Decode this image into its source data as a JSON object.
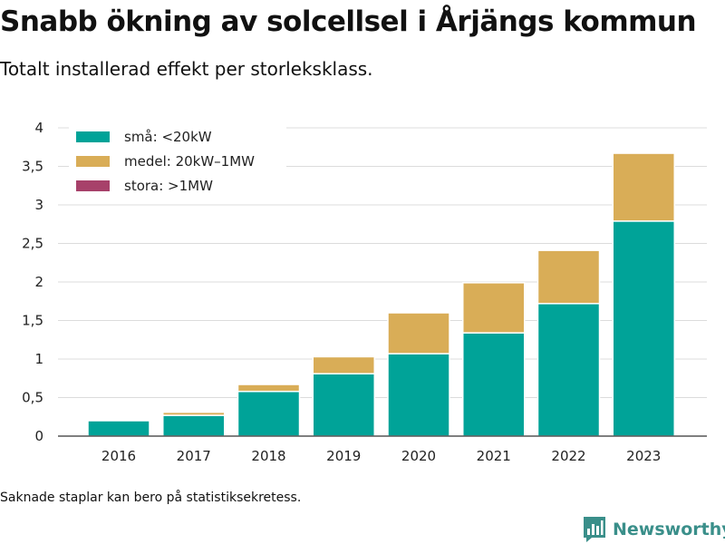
{
  "header": {
    "title": "Snabb ökning av solcellsel i Årjängs kommun",
    "subtitle": "Totalt installerad effekt per storleksklass."
  },
  "footer": {
    "note": "Saknade staplar kan bero på statistiksekretess.",
    "brand": "Newsworthy"
  },
  "chart_data": {
    "type": "bar",
    "stacked": true,
    "categories": [
      "2016",
      "2017",
      "2018",
      "2019",
      "2020",
      "2021",
      "2022",
      "2023"
    ],
    "series": [
      {
        "name": "små: <20kW",
        "color": "#00a398",
        "values": [
          0.2,
          0.27,
          0.58,
          0.81,
          1.07,
          1.34,
          1.72,
          2.79
        ]
      },
      {
        "name": "medel: 20kW–1MW",
        "color": "#d9ad57",
        "values": [
          0,
          0.04,
          0.09,
          0.22,
          0.53,
          0.65,
          0.69,
          0.88
        ]
      },
      {
        "name": "stora: >1MW",
        "color": "#a7416a",
        "values": [
          0,
          0,
          0,
          0,
          0,
          0,
          0,
          0
        ]
      }
    ],
    "yticks": [
      "0",
      "0,5",
      "1",
      "1,5",
      "2",
      "2,5",
      "3",
      "3,5",
      "4"
    ],
    "ylim": [
      0,
      4
    ],
    "grid": true,
    "legend_position": "top-left"
  }
}
